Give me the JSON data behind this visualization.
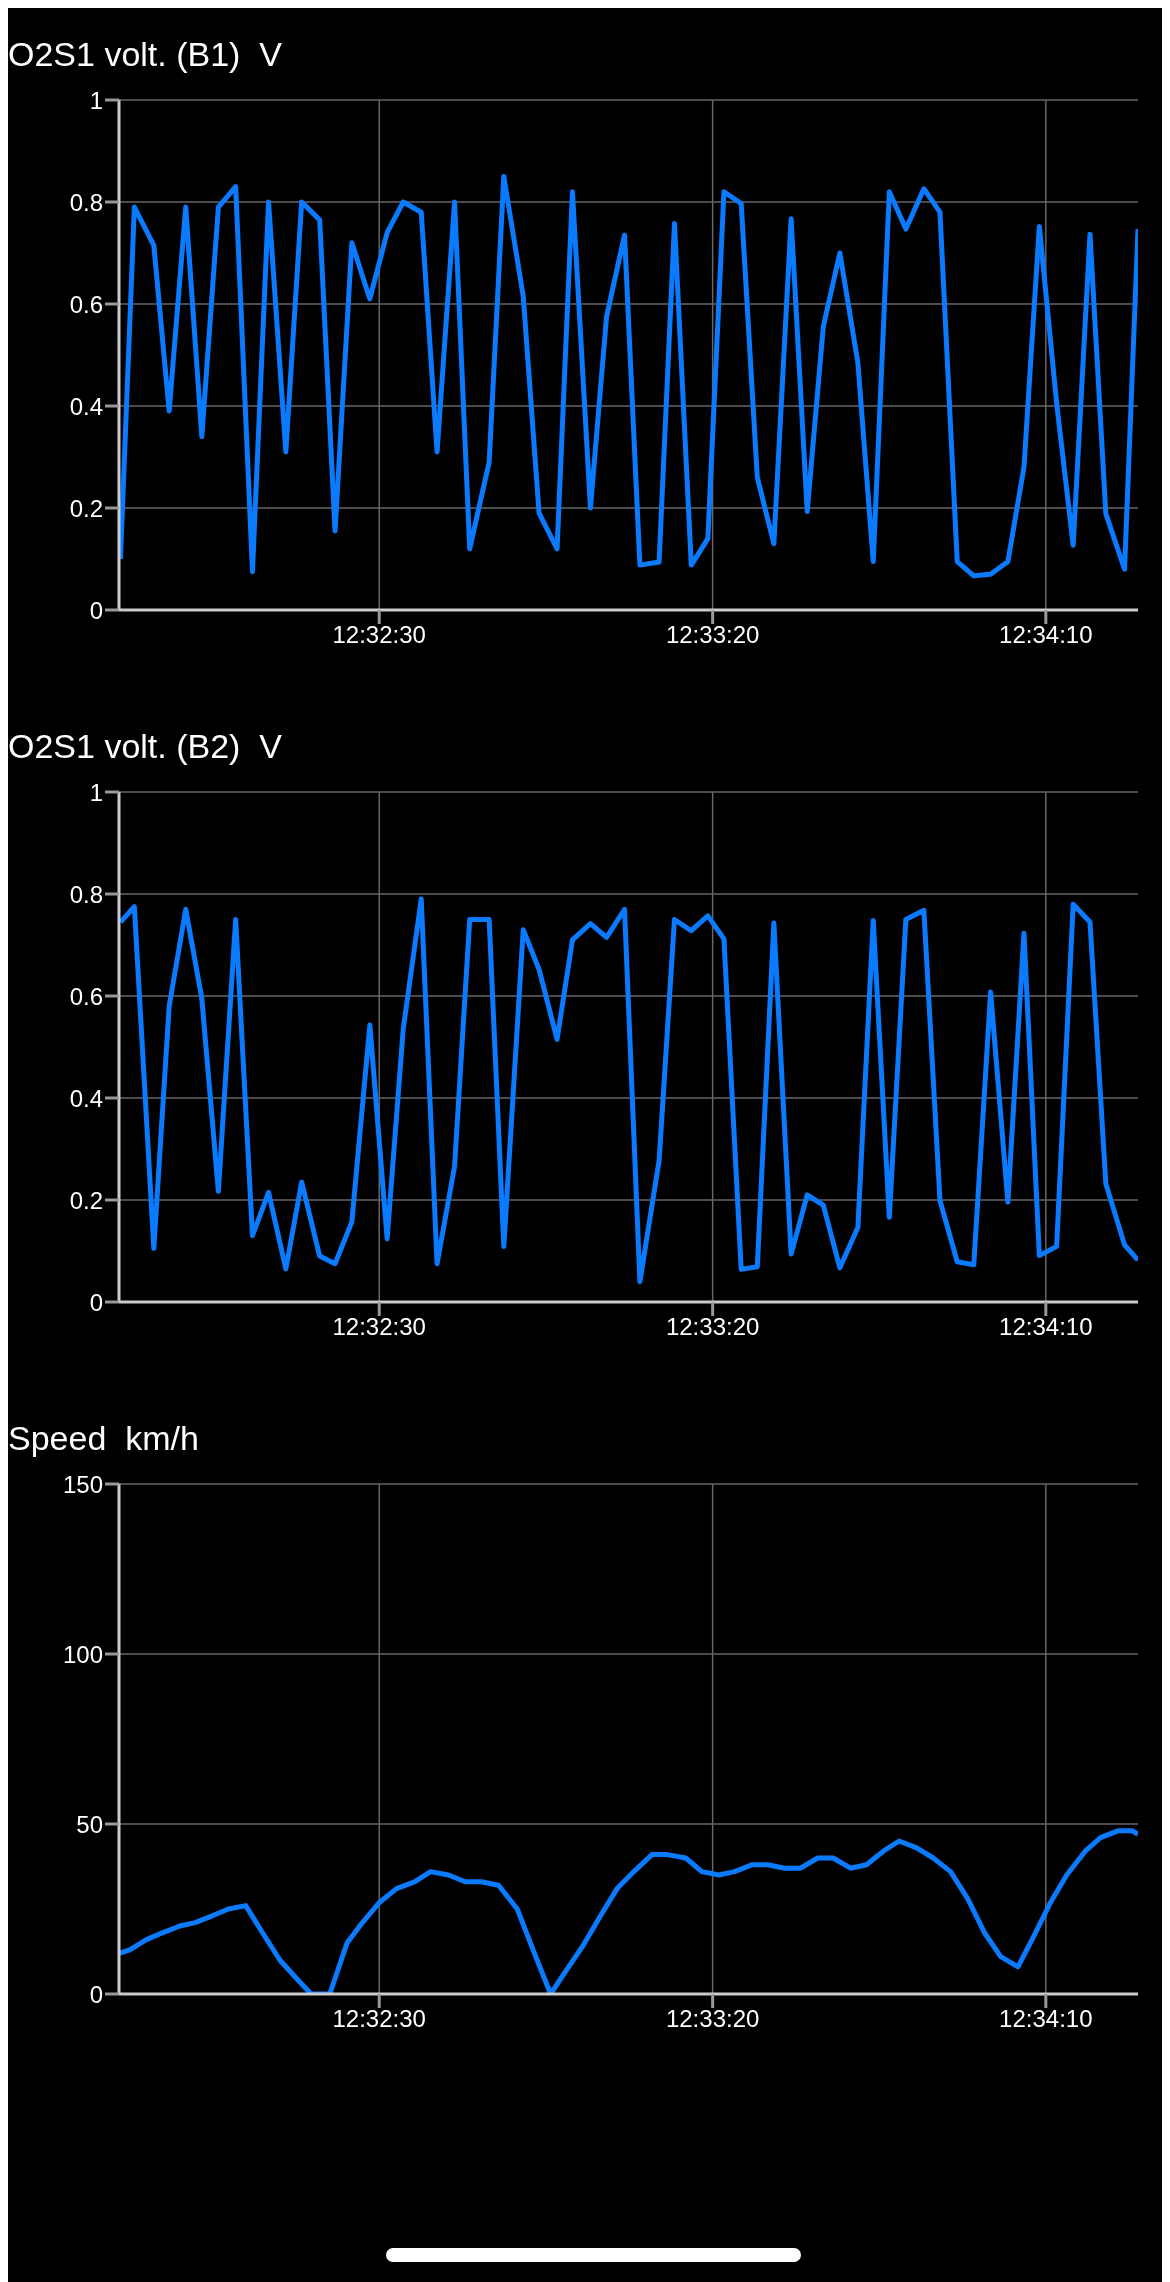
{
  "chart_data": [
    {
      "type": "line",
      "title": "O2S1 volt. (B1)  V",
      "x": [
        12.53089,
        12.53147,
        12.53228,
        12.53292,
        12.53361,
        12.53428,
        12.53497,
        12.53569,
        12.53639,
        12.53706,
        12.53778,
        12.53844,
        12.53919,
        12.53983,
        12.54053,
        12.54128,
        12.542,
        12.54267,
        12.54342,
        12.54408,
        12.54481,
        12.54544,
        12.54625,
        12.54686,
        12.54767,
        12.54833,
        12.54908,
        12.54972,
        12.55047,
        12.55114,
        12.55189,
        12.55253,
        12.55333,
        12.55397,
        12.55467,
        12.55536,
        12.55603,
        12.55675,
        12.55742,
        12.55811,
        12.55883,
        12.5595,
        12.56017,
        12.56086,
        12.56161,
        12.56225,
        12.56292,
        12.56361,
        12.56436,
        12.56503,
        12.56575,
        12.56644,
        12.56714,
        12.56786,
        12.56853,
        12.56917,
        12.56989,
        12.57058,
        12.57128,
        12.57194,
        12.57272,
        12.57328
      ],
      "series": [
        {
          "color": "#0a7aff",
          "values": [
            0.1,
            0.79,
            0.715,
            0.39,
            0.79,
            0.34,
            0.79,
            0.83,
            0.075,
            0.8,
            0.31,
            0.8,
            0.765,
            0.155,
            0.72,
            0.61,
            0.74,
            0.8,
            0.78,
            0.31,
            0.8,
            0.12,
            0.29,
            0.85,
            0.615,
            0.19,
            0.12,
            0.82,
            0.2,
            0.575,
            0.735,
            0.088,
            0.094,
            0.758,
            0.088,
            0.14,
            0.82,
            0.797,
            0.26,
            0.13,
            0.767,
            0.193,
            0.556,
            0.7,
            0.485,
            0.095,
            0.82,
            0.747,
            0.826,
            0.78,
            0.095,
            0.067,
            0.07,
            0.095,
            0.28,
            0.752,
            0.406,
            0.127,
            0.737,
            0.189,
            0.08,
            0.747
          ]
        }
      ],
      "xlim": [
        12.53083,
        12.57328
      ],
      "xticks": [
        {
          "value": 12.54167,
          "label": "12:32:30"
        },
        {
          "value": 12.55556,
          "label": "12:33:20"
        },
        {
          "value": 12.56944,
          "label": "12:34:10"
        }
      ],
      "ylim": [
        0,
        1
      ],
      "yticks": [
        0,
        0.2,
        0.4,
        0.6,
        0.8,
        1
      ],
      "grid": true
    },
    {
      "type": "line",
      "title": "O2S1 volt. (B2)  V",
      "x": [
        12.53089,
        12.53147,
        12.53228,
        12.53292,
        12.53361,
        12.53428,
        12.53497,
        12.53569,
        12.53639,
        12.53706,
        12.53778,
        12.53844,
        12.53919,
        12.53983,
        12.54053,
        12.54128,
        12.542,
        12.54267,
        12.54342,
        12.54408,
        12.54481,
        12.54544,
        12.54625,
        12.54686,
        12.54767,
        12.54833,
        12.54908,
        12.54972,
        12.55047,
        12.55114,
        12.55189,
        12.55253,
        12.55333,
        12.55397,
        12.55467,
        12.55536,
        12.55603,
        12.55675,
        12.55742,
        12.55811,
        12.55883,
        12.5595,
        12.56017,
        12.56086,
        12.56161,
        12.56225,
        12.56292,
        12.56361,
        12.56436,
        12.56503,
        12.56575,
        12.56644,
        12.56714,
        12.56786,
        12.56853,
        12.56917,
        12.56989,
        12.57058,
        12.57128,
        12.57194,
        12.57272,
        12.57328
      ],
      "series": [
        {
          "color": "#0a7aff",
          "values": [
            0.745,
            0.775,
            0.105,
            0.58,
            0.77,
            0.595,
            0.217,
            0.75,
            0.13,
            0.215,
            0.065,
            0.235,
            0.09,
            0.075,
            0.157,
            0.543,
            0.124,
            0.535,
            0.79,
            0.075,
            0.266,
            0.75,
            0.75,
            0.109,
            0.73,
            0.652,
            0.515,
            0.71,
            0.742,
            0.715,
            0.77,
            0.04,
            0.277,
            0.75,
            0.728,
            0.757,
            0.712,
            0.064,
            0.069,
            0.743,
            0.094,
            0.21,
            0.19,
            0.067,
            0.146,
            0.748,
            0.166,
            0.75,
            0.768,
            0.199,
            0.079,
            0.073,
            0.608,
            0.196,
            0.723,
            0.091,
            0.109,
            0.78,
            0.745,
            0.232,
            0.112,
            0.082
          ]
        }
      ],
      "xlim": [
        12.53083,
        12.57328
      ],
      "xticks": [
        {
          "value": 12.54167,
          "label": "12:32:30"
        },
        {
          "value": 12.55556,
          "label": "12:33:20"
        },
        {
          "value": 12.56944,
          "label": "12:34:10"
        }
      ],
      "ylim": [
        0,
        1
      ],
      "yticks": [
        0,
        0.2,
        0.4,
        0.6,
        0.8,
        1
      ],
      "grid": true
    },
    {
      "type": "line",
      "title": "Speed  km/h",
      "x": [
        12.53086,
        12.53128,
        12.53197,
        12.53264,
        12.53336,
        12.534,
        12.53472,
        12.53539,
        12.53611,
        12.53681,
        12.53753,
        12.53817,
        12.53883,
        12.53961,
        12.54033,
        12.54097,
        12.54169,
        12.54239,
        12.54314,
        12.54381,
        12.54456,
        12.54525,
        12.54592,
        12.54664,
        12.54742,
        12.54808,
        12.54881,
        12.54947,
        12.55014,
        12.55089,
        12.55158,
        12.55228,
        12.55303,
        12.55367,
        12.55444,
        12.55511,
        12.55583,
        12.55647,
        12.55719,
        12.55786,
        12.55856,
        12.55922,
        12.55994,
        12.56058,
        12.56131,
        12.56197,
        12.56267,
        12.56333,
        12.56406,
        12.56475,
        12.56547,
        12.56619,
        12.56689,
        12.56756,
        12.56828,
        12.56894,
        12.56964,
        12.57031,
        12.57108,
        12.57172,
        12.57244,
        12.57303,
        12.57328
      ],
      "series": [
        {
          "color": "#0a7aff",
          "values": [
            12,
            13,
            16,
            18,
            20,
            21,
            23,
            25,
            26,
            18,
            10,
            5,
            0,
            0,
            15,
            21,
            27,
            31,
            33,
            36,
            35,
            33,
            33,
            32,
            25,
            13,
            0,
            7,
            14,
            23,
            31,
            36,
            41,
            41,
            40,
            36,
            35,
            36,
            38,
            38,
            37,
            37,
            40,
            40,
            37,
            38,
            42,
            45,
            43,
            40,
            36,
            28,
            18,
            11,
            8,
            17,
            27,
            35,
            42,
            46,
            48,
            48,
            47
          ]
        }
      ],
      "xlim": [
        12.53083,
        12.57328
      ],
      "xticks": [
        {
          "value": 12.54167,
          "label": "12:32:30"
        },
        {
          "value": 12.55556,
          "label": "12:33:20"
        },
        {
          "value": 12.56944,
          "label": "12:34:10"
        }
      ],
      "ylim": [
        0,
        150
      ],
      "yticks": [
        0,
        50,
        100,
        150
      ],
      "grid": true
    }
  ]
}
